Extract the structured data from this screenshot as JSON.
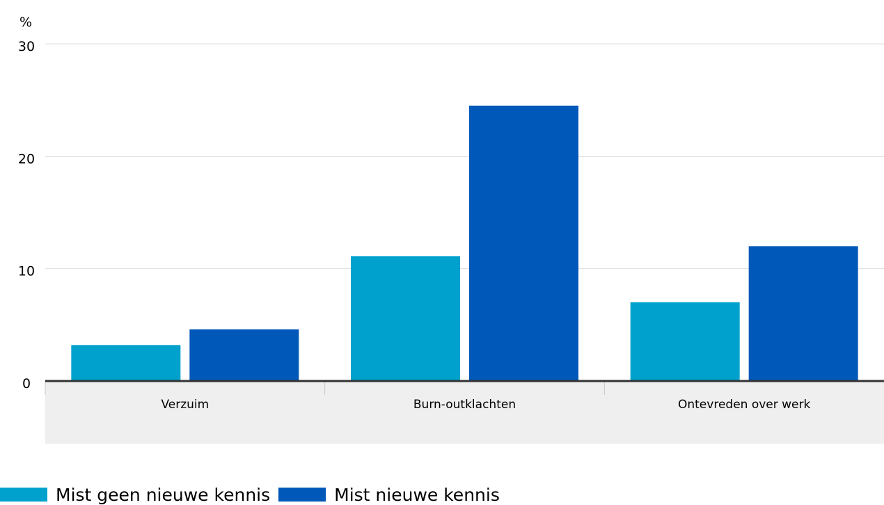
{
  "chart_data": {
    "type": "bar",
    "y_unit": "%",
    "categories": [
      "Verzuim",
      "Burn-outklachten",
      "Ontevreden over werk"
    ],
    "series": [
      {
        "name": "Mist geen nieuwe kennis",
        "values": [
          3.2,
          11.1,
          7.0
        ],
        "color": "#00a1cd"
      },
      {
        "name": "Mist nieuwe kennis",
        "values": [
          4.6,
          24.5,
          12.0
        ],
        "color": "#0058b8"
      }
    ],
    "ylim": [
      0,
      30
    ],
    "yticks": [
      0,
      10,
      20,
      30
    ],
    "grid": true,
    "legend_position": "bottom-left"
  }
}
